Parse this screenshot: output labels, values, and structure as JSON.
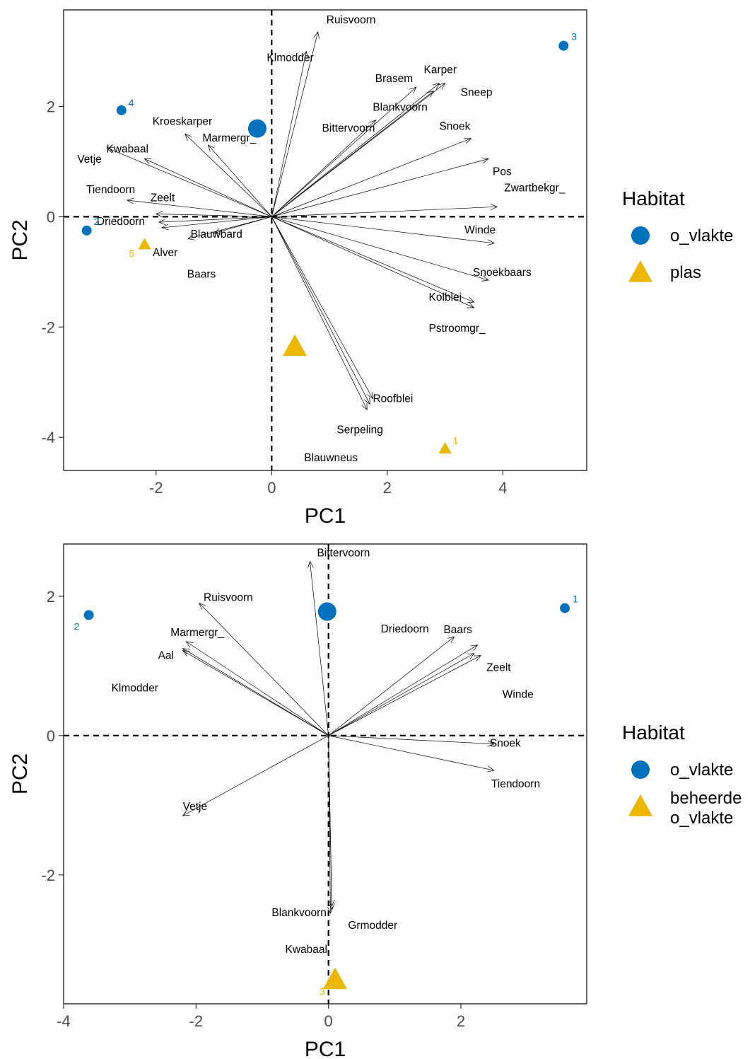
{
  "colors": {
    "o_vlakte": "#0072BD",
    "plas": "#EBB700",
    "beheerde": "#EBB700"
  },
  "chart_data": [
    {
      "type": "biplot",
      "xlabel": "PC1",
      "ylabel": "PC2",
      "xlim": [
        -3.6,
        5.45
      ],
      "ylim": [
        -4.6,
        3.75
      ],
      "xticks": [
        -2,
        0,
        2,
        4
      ],
      "yticks": [
        -4,
        -2,
        0,
        2
      ],
      "legend": {
        "title": "Habitat",
        "entries": [
          {
            "label": "o_vlakte",
            "shape": "circle",
            "color": "#0072BD"
          },
          {
            "label": "plas",
            "shape": "triangle",
            "color": "#EBB700"
          }
        ]
      },
      "points": [
        {
          "label": "1",
          "x": 3.0,
          "y": -4.2,
          "group": "plas"
        },
        {
          "label": "2",
          "x": -3.2,
          "y": -0.25,
          "group": "o_vlakte"
        },
        {
          "label": "3",
          "x": 5.05,
          "y": 3.1,
          "group": "o_vlakte"
        },
        {
          "label": "4",
          "x": -2.6,
          "y": 1.93,
          "group": "o_vlakte"
        },
        {
          "label": "5",
          "x": -2.2,
          "y": -0.5,
          "group": "plas"
        }
      ],
      "centroids": [
        {
          "group": "o_vlakte",
          "x": -0.25,
          "y": 1.6
        },
        {
          "group": "plas",
          "x": 0.4,
          "y": -2.35
        }
      ],
      "loadings": [
        {
          "name": "Ruisvoorn",
          "x": 0.8,
          "y": 3.35
        },
        {
          "name": "Klmodder",
          "x": 0.6,
          "y": 3.0
        },
        {
          "name": "Brasem",
          "x": 2.5,
          "y": 2.35
        },
        {
          "name": "Karper",
          "x": 2.9,
          "y": 2.42
        },
        {
          "name": "Sneep",
          "x": 3.0,
          "y": 2.42
        },
        {
          "name": "Blankvoorn",
          "x": 2.8,
          "y": 2.28
        },
        {
          "name": "Bittervoorn",
          "x": 1.8,
          "y": 1.75
        },
        {
          "name": "Snoek",
          "x": 3.45,
          "y": 1.42
        },
        {
          "name": "Pos",
          "x": 3.75,
          "y": 1.05
        },
        {
          "name": "Zwartbekgr_",
          "x": 3.9,
          "y": 0.18
        },
        {
          "name": "Winde",
          "x": 3.85,
          "y": -0.48
        },
        {
          "name": "Snoekbaars",
          "x": 3.75,
          "y": -1.15
        },
        {
          "name": "Kolblei",
          "x": 3.5,
          "y": -1.55
        },
        {
          "name": "Pstroomgr_",
          "x": 3.5,
          "y": -1.65
        },
        {
          "name": "Roofblei",
          "x": 1.75,
          "y": -3.3
        },
        {
          "name": "Serpeling",
          "x": 1.7,
          "y": -3.4
        },
        {
          "name": "Blauwneus",
          "x": 1.65,
          "y": -3.5
        },
        {
          "name": "Kroeskarper",
          "x": -1.5,
          "y": 1.5
        },
        {
          "name": "Marmergr_",
          "x": -1.1,
          "y": 1.3
        },
        {
          "name": "Kwabaal",
          "x": -2.2,
          "y": 1.05
        },
        {
          "name": "Vetje",
          "x": -2.85,
          "y": 1.25
        },
        {
          "name": "Tiendoorn",
          "x": -2.5,
          "y": 0.3
        },
        {
          "name": "Zeelt",
          "x": -2.0,
          "y": 0.05
        },
        {
          "name": "Driedoorn",
          "x": -1.95,
          "y": -0.1
        },
        {
          "name": "Alver",
          "x": -1.9,
          "y": -0.2
        },
        {
          "name": "Baars",
          "x": -1.45,
          "y": -0.4
        },
        {
          "name": "Blauwbard",
          "x": -1.0,
          "y": -0.3
        }
      ]
    },
    {
      "type": "biplot",
      "xlabel": "PC1",
      "ylabel": "PC2",
      "xlim": [
        -4.0,
        3.9
      ],
      "ylim": [
        -3.85,
        2.75
      ],
      "xticks": [
        -4,
        -2,
        0,
        2
      ],
      "yticks": [
        -2,
        0,
        2
      ],
      "legend": {
        "title": "Habitat",
        "entries": [
          {
            "label": "o_vlakte",
            "shape": "circle",
            "color": "#0072BD"
          },
          {
            "label": "beheerde",
            "label2": "o_vlakte",
            "shape": "triangle",
            "color": "#EBB700"
          }
        ]
      },
      "points": [
        {
          "label": "1",
          "x": 3.57,
          "y": 1.83,
          "group": "o_vlakte"
        },
        {
          "label": "2",
          "x": -3.62,
          "y": 1.73,
          "group": "o_vlakte"
        },
        {
          "label": "3",
          "x": 0.1,
          "y": -3.5,
          "group": "beheerde"
        }
      ],
      "centroids": [
        {
          "group": "o_vlakte",
          "x": -0.02,
          "y": 1.78
        },
        {
          "group": "beheerde",
          "x": 0.1,
          "y": -3.5
        }
      ],
      "loadings": [
        {
          "name": "Bittervoorn",
          "x": -0.28,
          "y": 2.5
        },
        {
          "name": "Ruisvoorn",
          "x": -1.95,
          "y": 1.9
        },
        {
          "name": "Marmergr_",
          "x": -2.15,
          "y": 1.35
        },
        {
          "name": "Aal",
          "x": -2.2,
          "y": 1.25
        },
        {
          "name": "Klmodder",
          "x": -2.2,
          "y": 1.22
        },
        {
          "name": "Driedoorn",
          "x": 1.9,
          "y": 1.42
        },
        {
          "name": "Baars",
          "x": 2.25,
          "y": 1.3
        },
        {
          "name": "Zeelt",
          "x": 2.3,
          "y": 1.15
        },
        {
          "name": "Winde",
          "x": 2.2,
          "y": 1.18
        },
        {
          "name": "Snoek",
          "x": 2.5,
          "y": -0.12
        },
        {
          "name": "Tiendoorn",
          "x": 2.5,
          "y": -0.5
        },
        {
          "name": "Vetje",
          "x": -2.2,
          "y": -1.15
        },
        {
          "name": "Blankvoorn",
          "x": 0.05,
          "y": -2.45
        },
        {
          "name": "Grmodder",
          "x": 0.05,
          "y": -2.5
        },
        {
          "name": "Kwabaal",
          "x": 0.03,
          "y": -2.55
        }
      ]
    }
  ]
}
